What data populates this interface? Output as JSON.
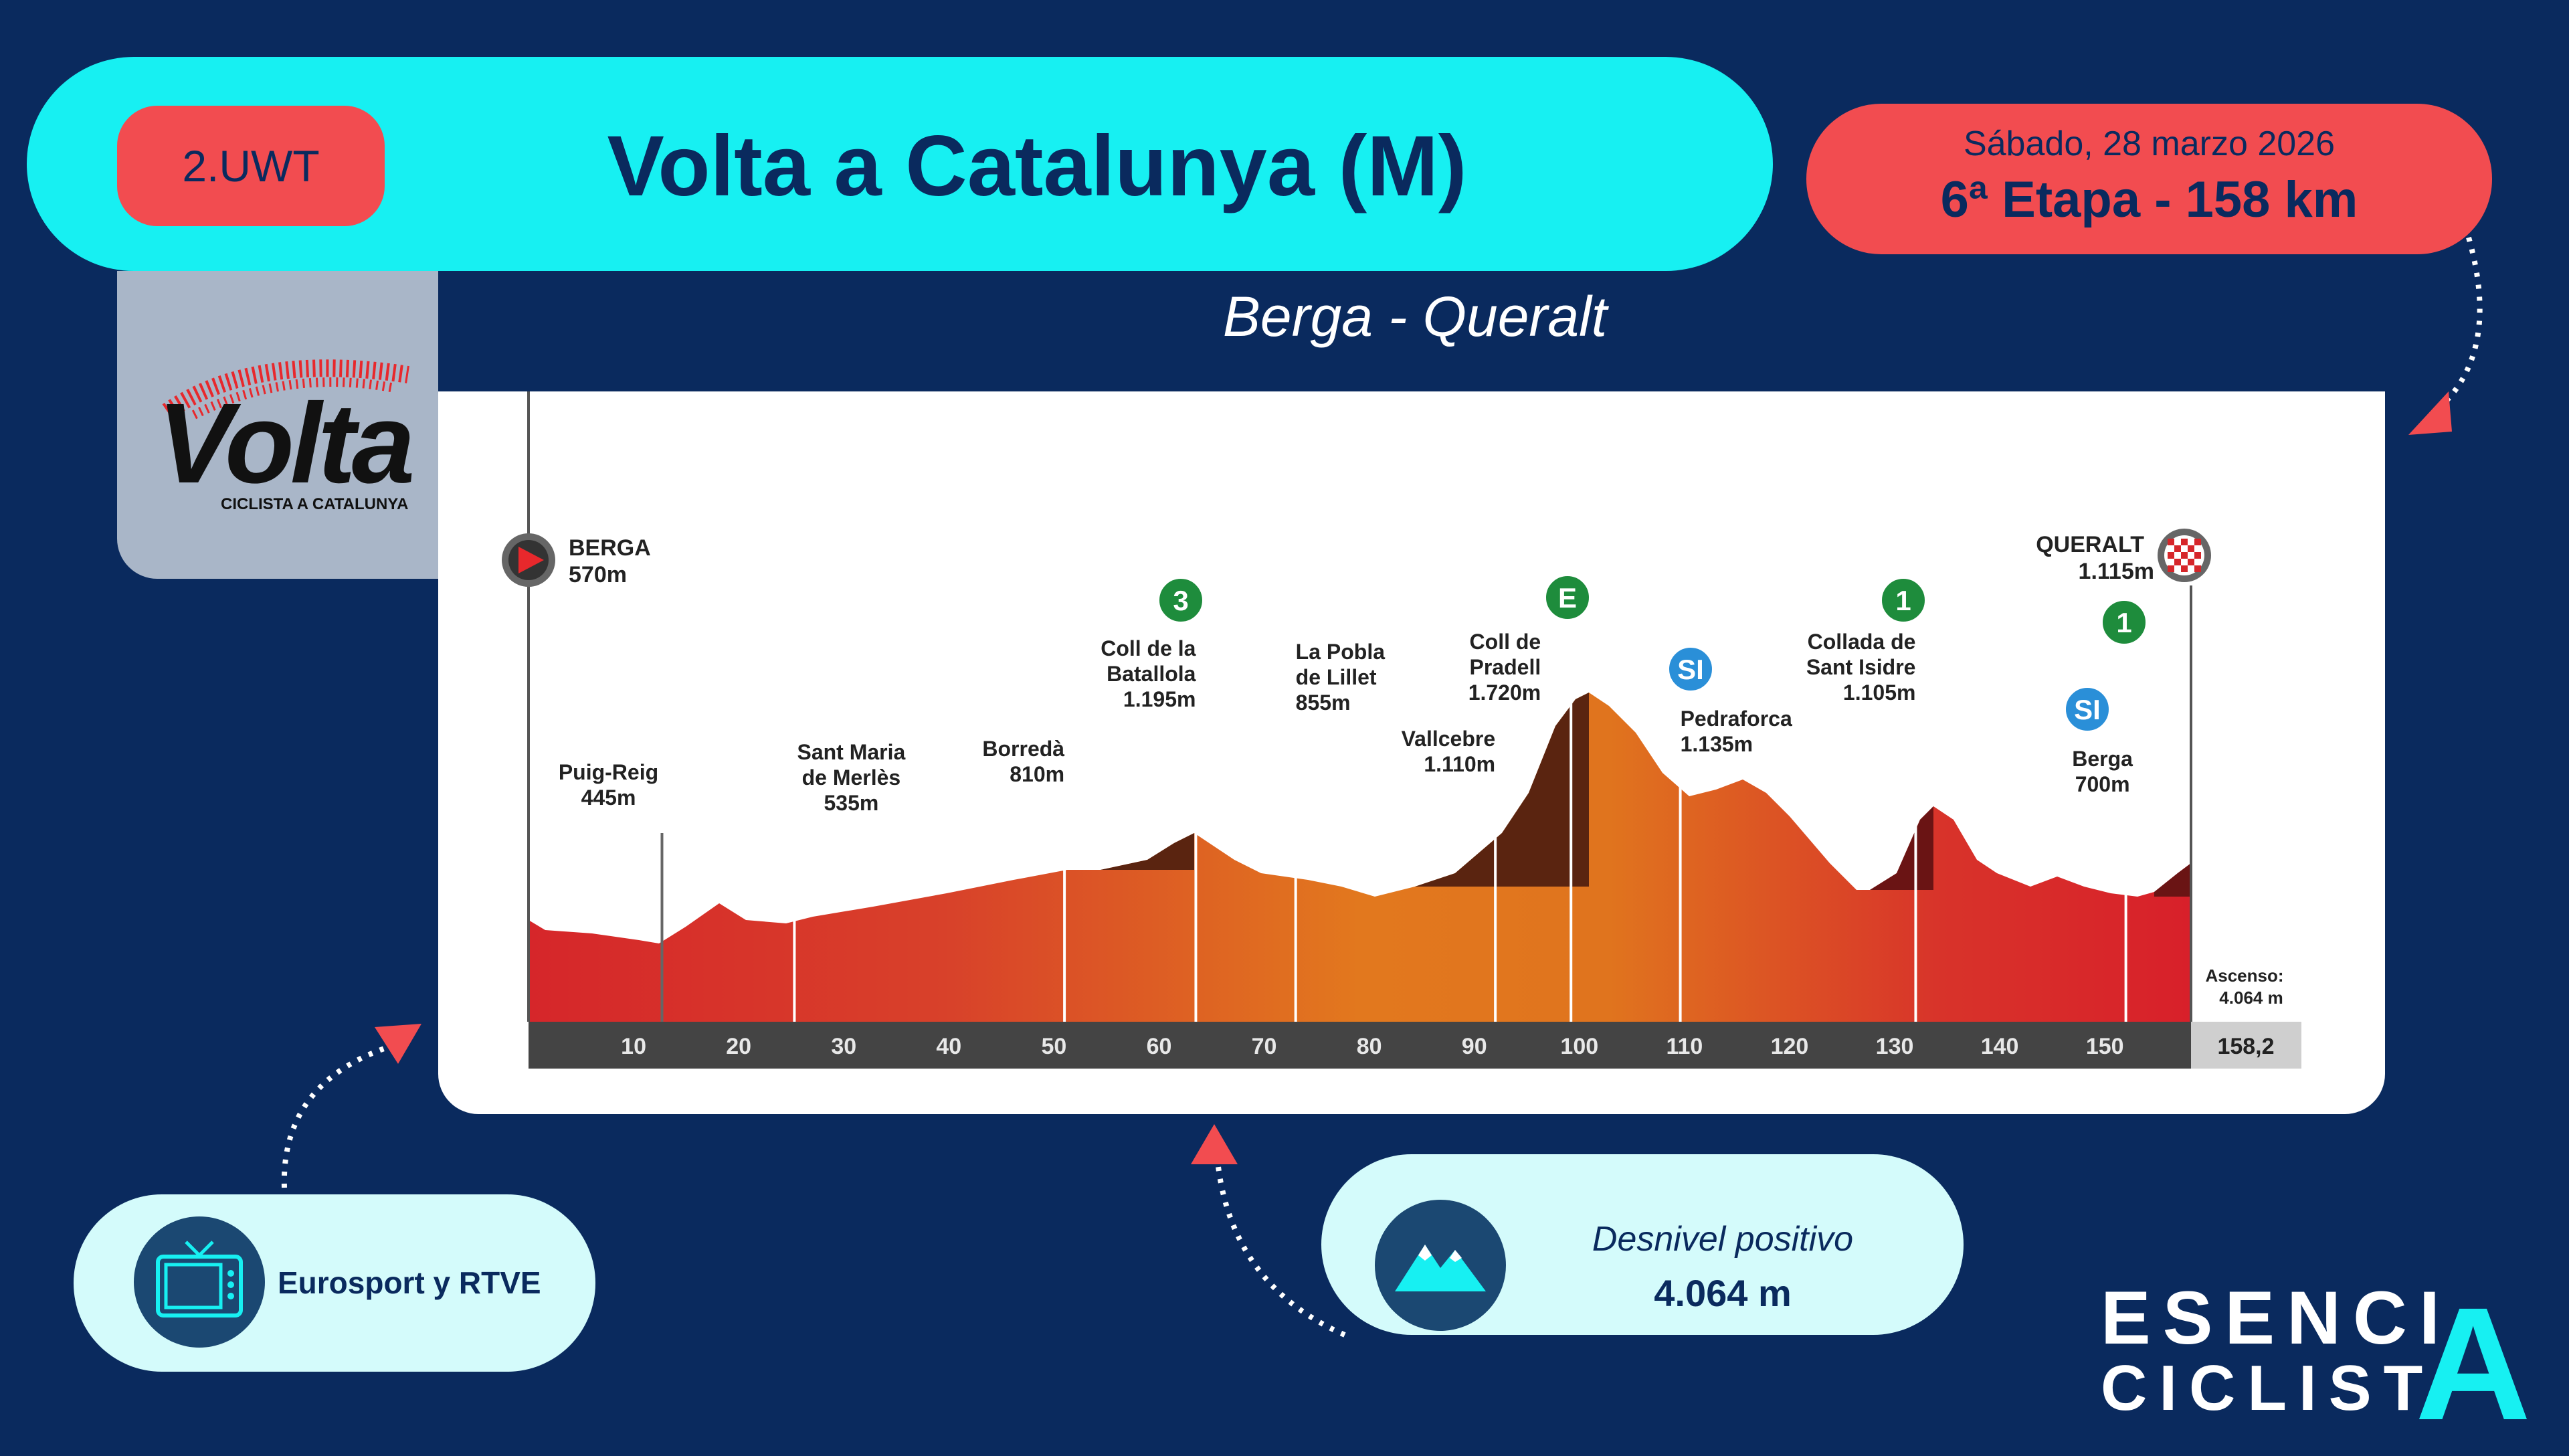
{
  "header": {
    "category": "2.UWT",
    "race_title": "Volta a Catalunya (M)",
    "date": "Sábado, 28 marzo 2026",
    "stage": "6ª Etapa - 158 km",
    "route": "Berga - Queralt"
  },
  "logo": {
    "name": "Volta",
    "subtitle": "CICLISTA A CATALUNYA"
  },
  "broadcast": {
    "label": "Eurosport y RTVE"
  },
  "elevation_gain": {
    "title": "Desnivel positivo",
    "value": "4.064 m"
  },
  "brand": {
    "line1": "ESENCI",
    "line2": "CICLIST",
    "letter": "A"
  },
  "profile": {
    "start": {
      "name": "BERGA",
      "alt": "570m"
    },
    "finish": {
      "name": "QUERALT",
      "alt": "1.115m"
    },
    "ascent_label": "Ascenso:",
    "ascent_value": "4.064 m",
    "total_km": "158,2",
    "km_ticks": [
      "10",
      "20",
      "30",
      "40",
      "50",
      "60",
      "70",
      "80",
      "90",
      "100",
      "110",
      "120",
      "130",
      "140",
      "150"
    ],
    "waypoints": [
      {
        "km": 12.7,
        "lines": [
          "Puig-Reig",
          "445m"
        ]
      },
      {
        "km": 25.3,
        "lines": [
          "Sant Maria",
          "de Merlès",
          "535m"
        ]
      },
      {
        "km": 51.0,
        "lines": [
          "Borredà",
          "810m"
        ]
      },
      {
        "km": 63.5,
        "lines": [
          "Coll de la",
          "Batallola",
          "1.195m"
        ]
      },
      {
        "km": 73.0,
        "lines": [
          "La Pobla",
          "de Lillet",
          "855m"
        ]
      },
      {
        "km": 92.0,
        "lines": [
          "Vallcebre",
          "1.110m"
        ]
      },
      {
        "km": 99.2,
        "lines": [
          "Coll de",
          "Pradell",
          "1.720m"
        ]
      },
      {
        "km": 109.6,
        "lines": [
          "Pedraforca",
          "1.135m"
        ]
      },
      {
        "km": 132.0,
        "lines": [
          "Collada de",
          "Sant Isidre",
          "1.105m"
        ]
      },
      {
        "km": 152.0,
        "lines": [
          "Berga",
          "700m"
        ]
      }
    ],
    "badges": [
      {
        "label": "3",
        "color": "#1e8c3c"
      },
      {
        "label": "E",
        "color": "#1e8c3c"
      },
      {
        "label": "SI",
        "color": "#2a8fd8"
      },
      {
        "label": "1",
        "color": "#1e8c3c"
      },
      {
        "label": "SI",
        "color": "#2a8fd8"
      },
      {
        "label": "1",
        "color": "#1e8c3c"
      }
    ]
  },
  "colors": {
    "background": "#0a2a5e",
    "cyan": "#17f0f2",
    "coral": "#f24c50"
  }
}
